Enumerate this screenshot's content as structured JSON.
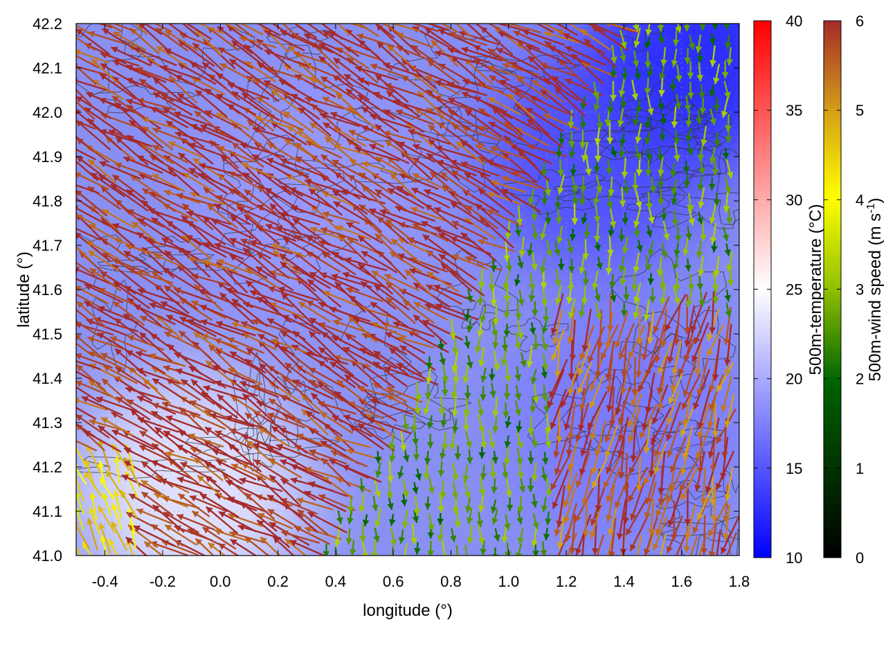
{
  "chart_data": {
    "type": "heatmap",
    "xlabel": "longitude (°)",
    "ylabel": "latitude (°)",
    "xlim": [
      -0.5,
      1.8
    ],
    "ylim": [
      41.0,
      42.2
    ],
    "x_ticks": [
      "-0.4",
      "-0.2",
      "0.0",
      "0.2",
      "0.4",
      "0.6",
      "0.8",
      "1.0",
      "1.2",
      "1.4",
      "1.6",
      "1.8"
    ],
    "y_ticks": [
      "41.0",
      "41.1",
      "41.2",
      "41.3",
      "41.4",
      "41.5",
      "41.6",
      "41.7",
      "41.8",
      "41.9",
      "42.0",
      "42.1",
      "42.2"
    ],
    "grid": true,
    "temperature_colorbar": {
      "label": "500m-temperature (°C)",
      "range": [
        10,
        40
      ],
      "ticks": [
        "10",
        "15",
        "20",
        "25",
        "30",
        "35",
        "40"
      ],
      "colors": [
        "#0000ff",
        "#ffffff",
        "#ff0000"
      ]
    },
    "wind_colorbar": {
      "label": "500m-wind speed (m s",
      "label_sup": "-1",
      "label_end": ")",
      "range": [
        0,
        6
      ],
      "ticks": [
        "0",
        "1",
        "2",
        "3",
        "4",
        "5",
        "6"
      ],
      "colors": [
        "#000000",
        "#006400",
        "#8fbf00",
        "#ffff00",
        "#d4a017",
        "#a52a2a"
      ]
    },
    "temperature_regions": [
      {
        "lon": 0.3,
        "lat": 41.8,
        "value": 19
      },
      {
        "lon": -0.1,
        "lat": 41.15,
        "value": 24
      },
      {
        "lon": 1.3,
        "lat": 41.9,
        "value": 14
      },
      {
        "lon": 1.7,
        "lat": 42.15,
        "value": 12
      },
      {
        "lon": 1.4,
        "lat": 41.3,
        "value": 17
      }
    ],
    "wind_regimes": [
      {
        "region": "west",
        "direction_deg": 150,
        "speed": 6
      },
      {
        "region": "northeast",
        "direction_deg": 270,
        "speed": 2
      },
      {
        "region": "southeast",
        "direction_deg": 255,
        "speed": 5.5
      },
      {
        "region": "southwest corner",
        "direction_deg": 110,
        "speed": 4
      }
    ]
  }
}
